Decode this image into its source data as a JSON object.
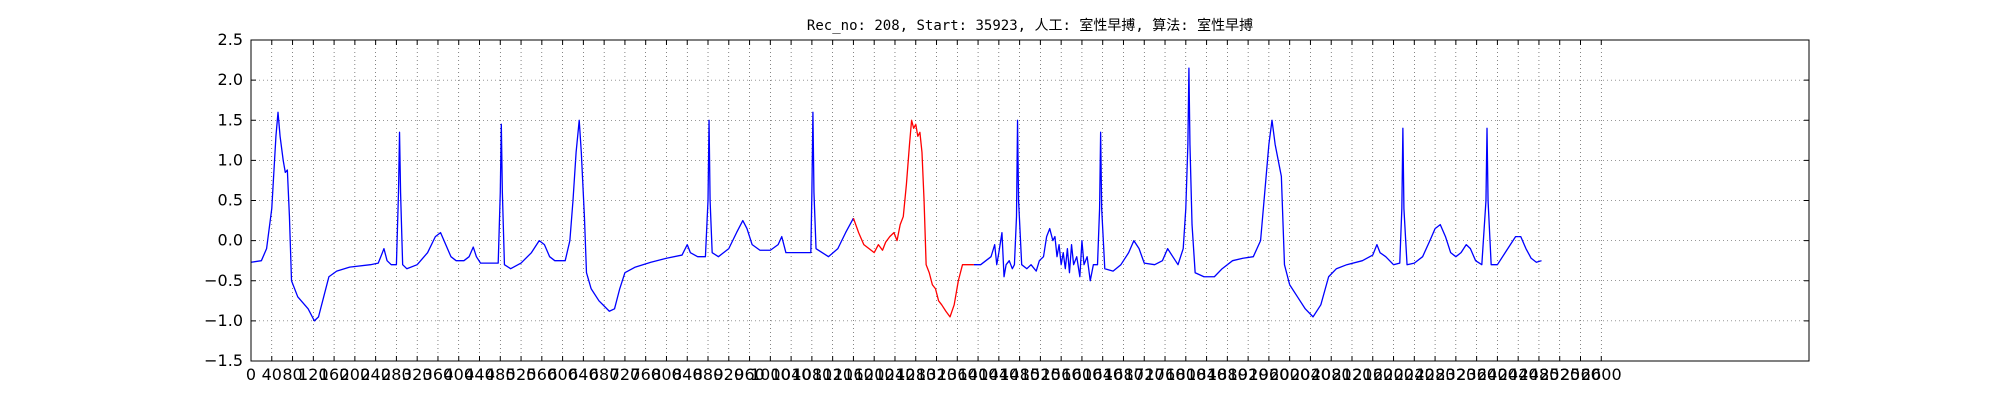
{
  "chart_data": {
    "type": "line",
    "title": "Rec_no: 208, Start: 35923, 人工: 室性早搏, 算法: 室性早搏",
    "xlabel": "",
    "ylabel": "",
    "xlim": [
      0,
      3000
    ],
    "ylim": [
      -1.5,
      2.5
    ],
    "grid": true,
    "x_ticks": [
      0,
      40,
      80,
      120,
      160,
      200,
      240,
      280,
      320,
      360,
      400,
      440,
      480,
      520,
      560,
      600,
      640,
      680,
      720,
      760,
      800,
      840,
      880,
      920,
      960,
      1000,
      1040,
      1080,
      1120,
      1160,
      1200,
      1240,
      1280,
      1320,
      1360,
      1400,
      1440,
      1480,
      1520,
      1560,
      1600,
      1640,
      1680,
      1720,
      1760,
      1800,
      1840,
      1880,
      1920,
      1960,
      2000,
      2040,
      2080,
      2120,
      2160,
      2200,
      2240,
      2280,
      2320,
      2360,
      2400,
      2440,
      2480,
      2520,
      2560,
      2600
    ],
    "y_ticks": [
      -1.5,
      -1.0,
      -0.5,
      0.0,
      0.5,
      1.0,
      1.5,
      2.0,
      2.5
    ],
    "y_tick_labels": [
      "−1.5",
      "−1.0",
      "−0.5",
      "0.0",
      "0.5",
      "1.0",
      "1.5",
      "2.0",
      "2.5"
    ],
    "colors": {
      "signal": "#0000ff",
      "highlight": "#ff0000",
      "grid": "#000000"
    },
    "series": [
      {
        "color": "#0000ff",
        "points": [
          [
            0,
            -0.27
          ],
          [
            20,
            -0.25
          ],
          [
            30,
            -0.1
          ],
          [
            40,
            0.4
          ],
          [
            48,
            1.3
          ],
          [
            52,
            1.6
          ],
          [
            56,
            1.3
          ],
          [
            62,
            1.0
          ],
          [
            66,
            0.85
          ],
          [
            70,
            0.88
          ],
          [
            74,
            0.3
          ],
          [
            78,
            -0.5
          ],
          [
            90,
            -0.7
          ],
          [
            110,
            -0.85
          ],
          [
            122,
            -1.0
          ],
          [
            130,
            -0.95
          ],
          [
            140,
            -0.7
          ],
          [
            150,
            -0.45
          ],
          [
            165,
            -0.38
          ],
          [
            190,
            -0.33
          ],
          [
            230,
            -0.3
          ],
          [
            245,
            -0.28
          ],
          [
            250,
            -0.2
          ],
          [
            256,
            -0.1
          ],
          [
            262,
            -0.25
          ],
          [
            270,
            -0.3
          ],
          [
            280,
            -0.3
          ],
          [
            284,
            0.6
          ],
          [
            286,
            1.35
          ],
          [
            288,
            0.6
          ],
          [
            292,
            -0.3
          ],
          [
            300,
            -0.35
          ],
          [
            320,
            -0.3
          ],
          [
            340,
            -0.15
          ],
          [
            355,
            0.05
          ],
          [
            365,
            0.1
          ],
          [
            375,
            -0.05
          ],
          [
            385,
            -0.2
          ],
          [
            395,
            -0.25
          ],
          [
            410,
            -0.25
          ],
          [
            420,
            -0.2
          ],
          [
            428,
            -0.08
          ],
          [
            434,
            -0.2
          ],
          [
            442,
            -0.28
          ],
          [
            476,
            -0.28
          ],
          [
            480,
            0.6
          ],
          [
            482,
            1.45
          ],
          [
            484,
            0.6
          ],
          [
            488,
            -0.3
          ],
          [
            500,
            -0.35
          ],
          [
            520,
            -0.28
          ],
          [
            540,
            -0.15
          ],
          [
            555,
            0.0
          ],
          [
            565,
            -0.05
          ],
          [
            575,
            -0.2
          ],
          [
            585,
            -0.25
          ],
          [
            605,
            -0.25
          ],
          [
            614,
            0.0
          ],
          [
            620,
            0.5
          ],
          [
            626,
            1.1
          ],
          [
            632,
            1.5
          ],
          [
            636,
            1.1
          ],
          [
            642,
            0.3
          ],
          [
            646,
            -0.4
          ],
          [
            655,
            -0.6
          ],
          [
            670,
            -0.75
          ],
          [
            690,
            -0.88
          ],
          [
            700,
            -0.85
          ],
          [
            710,
            -0.6
          ],
          [
            720,
            -0.4
          ],
          [
            740,
            -0.33
          ],
          [
            770,
            -0.27
          ],
          [
            800,
            -0.22
          ],
          [
            830,
            -0.18
          ],
          [
            840,
            -0.05
          ],
          [
            846,
            -0.15
          ],
          [
            860,
            -0.2
          ],
          [
            875,
            -0.2
          ],
          [
            880,
            0.5
          ],
          [
            882,
            1.5
          ],
          [
            884,
            0.5
          ],
          [
            888,
            -0.15
          ],
          [
            900,
            -0.2
          ],
          [
            920,
            -0.1
          ],
          [
            935,
            0.1
          ],
          [
            947,
            0.25
          ],
          [
            955,
            0.15
          ],
          [
            965,
            -0.05
          ],
          [
            980,
            -0.12
          ],
          [
            1000,
            -0.12
          ],
          [
            1015,
            -0.05
          ],
          [
            1022,
            0.05
          ],
          [
            1030,
            -0.15
          ],
          [
            1055,
            -0.15
          ],
          [
            1078,
            -0.15
          ],
          [
            1080,
            0.6
          ],
          [
            1082,
            1.6
          ],
          [
            1084,
            0.6
          ],
          [
            1088,
            -0.1
          ],
          [
            1100,
            -0.15
          ],
          [
            1112,
            -0.2
          ],
          [
            1130,
            -0.1
          ],
          [
            1145,
            0.1
          ],
          [
            1160,
            0.28
          ]
        ]
      },
      {
        "color": "#ff0000",
        "points": [
          [
            1160,
            0.28
          ],
          [
            1170,
            0.1
          ],
          [
            1180,
            -0.05
          ],
          [
            1190,
            -0.1
          ],
          [
            1200,
            -0.15
          ],
          [
            1208,
            -0.05
          ],
          [
            1216,
            -0.12
          ],
          [
            1222,
            -0.02
          ],
          [
            1230,
            0.05
          ],
          [
            1238,
            0.1
          ],
          [
            1244,
            0.0
          ],
          [
            1250,
            0.2
          ],
          [
            1256,
            0.3
          ],
          [
            1262,
            0.7
          ],
          [
            1268,
            1.2
          ],
          [
            1272,
            1.5
          ],
          [
            1276,
            1.4
          ],
          [
            1280,
            1.45
          ],
          [
            1284,
            1.3
          ],
          [
            1288,
            1.35
          ],
          [
            1292,
            1.1
          ],
          [
            1296,
            0.5
          ],
          [
            1300,
            -0.3
          ],
          [
            1306,
            -0.4
          ],
          [
            1312,
            -0.55
          ],
          [
            1318,
            -0.6
          ],
          [
            1324,
            -0.75
          ],
          [
            1330,
            -0.8
          ],
          [
            1338,
            -0.88
          ],
          [
            1346,
            -0.95
          ],
          [
            1354,
            -0.8
          ],
          [
            1362,
            -0.5
          ],
          [
            1370,
            -0.3
          ],
          [
            1380,
            -0.3
          ],
          [
            1392,
            -0.3
          ]
        ]
      },
      {
        "color": "#0000ff",
        "points": [
          [
            1392,
            -0.3
          ],
          [
            1405,
            -0.3
          ],
          [
            1415,
            -0.25
          ],
          [
            1425,
            -0.2
          ],
          [
            1432,
            -0.05
          ],
          [
            1436,
            -0.3
          ],
          [
            1440,
            -0.15
          ],
          [
            1446,
            0.1
          ],
          [
            1450,
            -0.45
          ],
          [
            1454,
            -0.3
          ],
          [
            1460,
            -0.25
          ],
          [
            1466,
            -0.35
          ],
          [
            1470,
            -0.3
          ],
          [
            1474,
            0.3
          ],
          [
            1476,
            1.5
          ],
          [
            1478,
            0.5
          ],
          [
            1484,
            -0.3
          ],
          [
            1494,
            -0.35
          ],
          [
            1502,
            -0.3
          ],
          [
            1512,
            -0.38
          ],
          [
            1518,
            -0.25
          ],
          [
            1526,
            -0.2
          ],
          [
            1532,
            0.05
          ],
          [
            1538,
            0.15
          ],
          [
            1544,
            0.0
          ],
          [
            1548,
            0.05
          ],
          [
            1552,
            -0.2
          ],
          [
            1556,
            -0.05
          ],
          [
            1560,
            -0.3
          ],
          [
            1564,
            -0.15
          ],
          [
            1568,
            -0.35
          ],
          [
            1572,
            -0.1
          ],
          [
            1576,
            -0.4
          ],
          [
            1580,
            -0.05
          ],
          [
            1584,
            -0.3
          ],
          [
            1590,
            -0.2
          ],
          [
            1596,
            -0.45
          ],
          [
            1600,
            0.0
          ],
          [
            1604,
            -0.3
          ],
          [
            1610,
            -0.2
          ],
          [
            1616,
            -0.5
          ],
          [
            1622,
            -0.3
          ],
          [
            1630,
            -0.3
          ],
          [
            1634,
            0.4
          ],
          [
            1636,
            1.35
          ],
          [
            1638,
            0.4
          ],
          [
            1644,
            -0.35
          ],
          [
            1660,
            -0.38
          ],
          [
            1675,
            -0.3
          ],
          [
            1690,
            -0.15
          ],
          [
            1700,
            0.0
          ],
          [
            1710,
            -0.1
          ],
          [
            1720,
            -0.28
          ],
          [
            1740,
            -0.3
          ],
          [
            1755,
            -0.25
          ],
          [
            1765,
            -0.1
          ],
          [
            1775,
            -0.2
          ],
          [
            1785,
            -0.3
          ],
          [
            1795,
            -0.1
          ],
          [
            1800,
            0.4
          ],
          [
            1804,
            1.2
          ],
          [
            1806,
            2.15
          ],
          [
            1808,
            1.2
          ],
          [
            1812,
            0.2
          ],
          [
            1818,
            -0.4
          ],
          [
            1835,
            -0.45
          ],
          [
            1855,
            -0.45
          ],
          [
            1870,
            -0.35
          ],
          [
            1890,
            -0.25
          ],
          [
            1910,
            -0.22
          ],
          [
            1930,
            -0.2
          ],
          [
            1944,
            0.0
          ],
          [
            1952,
            0.6
          ],
          [
            1960,
            1.2
          ],
          [
            1966,
            1.5
          ],
          [
            1972,
            1.2
          ],
          [
            1978,
            1.0
          ],
          [
            1984,
            0.8
          ],
          [
            1990,
            -0.3
          ],
          [
            2000,
            -0.55
          ],
          [
            2015,
            -0.7
          ],
          [
            2030,
            -0.85
          ],
          [
            2045,
            -0.95
          ],
          [
            2060,
            -0.8
          ],
          [
            2075,
            -0.45
          ],
          [
            2090,
            -0.35
          ],
          [
            2110,
            -0.3
          ],
          [
            2140,
            -0.25
          ],
          [
            2160,
            -0.18
          ],
          [
            2168,
            -0.05
          ],
          [
            2174,
            -0.15
          ],
          [
            2185,
            -0.2
          ],
          [
            2200,
            -0.3
          ],
          [
            2212,
            -0.28
          ],
          [
            2216,
            0.4
          ],
          [
            2218,
            1.4
          ],
          [
            2220,
            0.4
          ],
          [
            2226,
            -0.3
          ],
          [
            2240,
            -0.28
          ],
          [
            2256,
            -0.2
          ],
          [
            2270,
            0.0
          ],
          [
            2280,
            0.15
          ],
          [
            2290,
            0.2
          ],
          [
            2300,
            0.05
          ],
          [
            2310,
            -0.15
          ],
          [
            2320,
            -0.2
          ],
          [
            2330,
            -0.15
          ],
          [
            2340,
            -0.05
          ],
          [
            2348,
            -0.1
          ],
          [
            2358,
            -0.25
          ],
          [
            2370,
            -0.3
          ],
          [
            2378,
            0.5
          ],
          [
            2380,
            1.4
          ],
          [
            2382,
            0.5
          ],
          [
            2388,
            -0.3
          ],
          [
            2400,
            -0.3
          ],
          [
            2415,
            -0.15
          ],
          [
            2425,
            -0.05
          ],
          [
            2435,
            0.05
          ],
          [
            2445,
            0.05
          ],
          [
            2455,
            -0.1
          ],
          [
            2465,
            -0.22
          ],
          [
            2475,
            -0.27
          ],
          [
            2485,
            -0.25
          ]
        ]
      }
    ]
  }
}
